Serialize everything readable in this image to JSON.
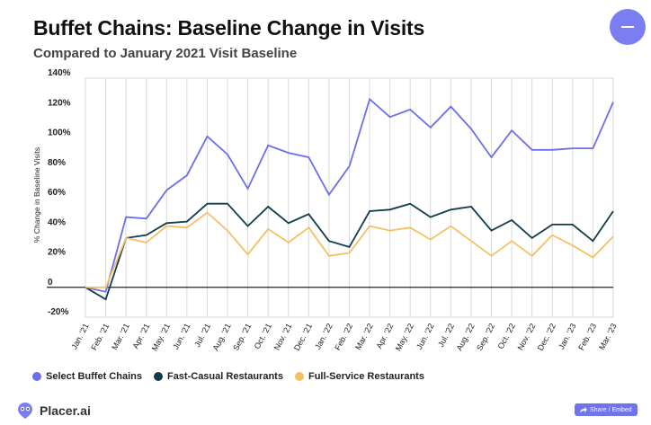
{
  "header": {
    "title": "Buffet Chains: Baseline Change in Visits",
    "subtitle": "Compared to January 2021 Visit Baseline"
  },
  "colors": {
    "buffet": "#6c6fe8",
    "fast_casual": "#123c4d",
    "full_service": "#f4c063",
    "accent": "#7b7ef0"
  },
  "chart_data": {
    "type": "line",
    "title": "Buffet Chains: Baseline Change in Visits",
    "subtitle": "Compared to January 2021 Visit Baseline",
    "xlabel": "",
    "ylabel": "% Change in Baseline Visits",
    "ylim": [
      -20,
      140
    ],
    "yticks": [
      -20,
      0,
      20,
      40,
      60,
      80,
      100,
      120,
      140
    ],
    "ytick_labels": [
      "-20%",
      "0",
      "20%",
      "40%",
      "60%",
      "80%",
      "100%",
      "120%",
      "140%"
    ],
    "grid": "vertical",
    "legend_position": "bottom-left",
    "categories": [
      "Jan. '21",
      "Feb. '21",
      "Mar. '21",
      "Apr. '21",
      "May. '21",
      "Jun. '21",
      "Jul. '21",
      "Aug. '21",
      "Sep. '21",
      "Oct. '21",
      "Nov. '21",
      "Dec. '21",
      "Jan. '22",
      "Feb. '22",
      "Mar. '22",
      "Apr. '22",
      "May. '22",
      "Jun. '22",
      "Jul. '22",
      "Aug. '22",
      "Sep. '22",
      "Oct. '22",
      "Nov. '22",
      "Dec. '22",
      "Jan. '23",
      "Feb. '23",
      "Mar. '23"
    ],
    "series": [
      {
        "name": "Select Buffet Chains",
        "color": "#6c6fe8",
        "values": [
          0,
          -3,
          47,
          46,
          65,
          75,
          101,
          89,
          66,
          95,
          90,
          87,
          62,
          81,
          126,
          114,
          119,
          107,
          121,
          106,
          87,
          105,
          92,
          92,
          93,
          93,
          124
        ]
      },
      {
        "name": "Fast-Casual Restaurants",
        "color": "#123c4d",
        "values": [
          0,
          -8,
          33,
          35,
          43,
          44,
          56,
          56,
          41,
          54,
          43,
          49,
          31,
          27,
          51,
          52,
          56,
          47,
          52,
          54,
          38,
          45,
          33,
          42,
          42,
          31,
          51
        ]
      },
      {
        "name": "Full-Service Restaurants",
        "color": "#f4c063",
        "values": [
          0,
          0,
          33,
          30,
          41,
          40,
          50,
          38,
          22,
          39,
          30,
          40,
          21,
          23,
          41,
          38,
          40,
          32,
          41,
          31,
          21,
          31,
          21,
          35,
          28,
          20,
          34
        ]
      }
    ]
  },
  "legend": {
    "items": [
      {
        "label": "Select Buffet Chains",
        "color": "#6c6fe8"
      },
      {
        "label": "Fast-Casual Restaurants",
        "color": "#123c4d"
      },
      {
        "label": "Full-Service Restaurants",
        "color": "#f4c063"
      }
    ]
  },
  "footer": {
    "logo_text": "Placer.ai",
    "share_label": "Share / Embed"
  }
}
